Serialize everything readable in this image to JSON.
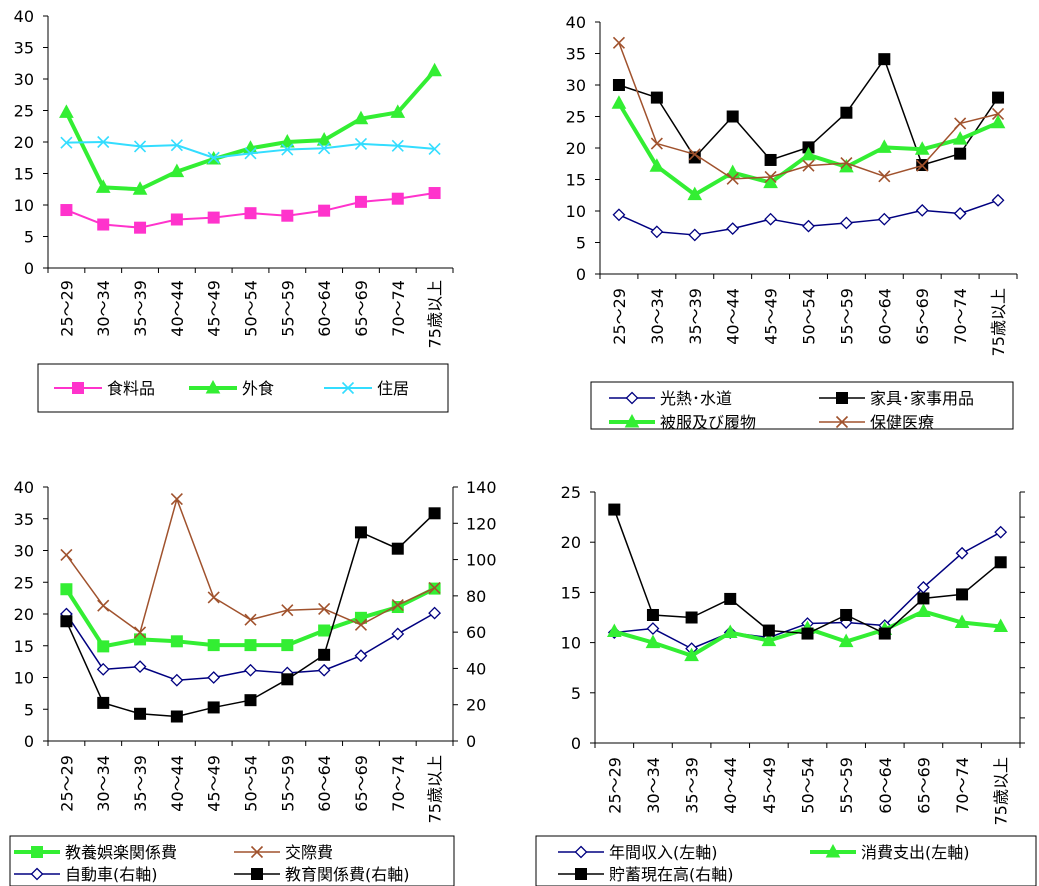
{
  "colors": {
    "magenta": "#ff33cc",
    "green": "#33ee33",
    "cyan": "#33ddff",
    "navy": "#000080",
    "black": "#000000",
    "brown": "#a0522d"
  },
  "chart_data": [
    {
      "type": "line",
      "categories": [
        "25～29",
        "30～34",
        "35～39",
        "40～44",
        "45～49",
        "50～54",
        "55～59",
        "60～64",
        "65～69",
        "70～74",
        "75歳以上"
      ],
      "ylim": [
        0,
        40
      ],
      "yticks": [
        0,
        5,
        10,
        15,
        20,
        25,
        30,
        35,
        40
      ],
      "legend": "bottom",
      "series": [
        {
          "name": "食料品",
          "color": "#ff33cc",
          "marker": "square",
          "width": 2,
          "values": [
            9.2,
            6.9,
            6.4,
            7.7,
            8.0,
            8.7,
            8.3,
            9.1,
            10.5,
            11.0,
            11.9
          ]
        },
        {
          "name": "外食",
          "color": "#33ee33",
          "marker": "triangle",
          "width": 4,
          "values": [
            24.7,
            12.8,
            12.5,
            15.3,
            17.3,
            19.0,
            20.0,
            20.3,
            23.7,
            24.7,
            31.3
          ]
        },
        {
          "name": "住居",
          "color": "#33ddff",
          "marker": "x",
          "width": 2,
          "values": [
            19.9,
            20.0,
            19.3,
            19.5,
            17.5,
            18.2,
            18.8,
            19.0,
            19.7,
            19.4,
            18.9
          ]
        }
      ]
    },
    {
      "type": "line",
      "categories": [
        "25～29",
        "30～34",
        "35～39",
        "40～44",
        "45～49",
        "50～54",
        "55～59",
        "60～64",
        "65～69",
        "70～74",
        "75歳以上"
      ],
      "ylim": [
        0,
        40
      ],
      "yticks": [
        0,
        5,
        10,
        15,
        20,
        25,
        30,
        35,
        40
      ],
      "legend": "bottom",
      "series": [
        {
          "name": "光熱･水道",
          "color": "#000080",
          "marker": "diamond",
          "width": 1.5,
          "values": [
            9.4,
            6.7,
            6.2,
            7.2,
            8.7,
            7.6,
            8.1,
            8.7,
            10.1,
            9.6,
            11.7
          ]
        },
        {
          "name": "家具･家事用品",
          "color": "#000000",
          "marker": "square",
          "width": 1.5,
          "values": [
            30.0,
            28.0,
            18.5,
            25.0,
            18.1,
            20.1,
            25.6,
            34.1,
            17.3,
            19.1,
            28.0
          ]
        },
        {
          "name": "被服及び履物",
          "color": "#33ee33",
          "marker": "triangle",
          "width": 4,
          "values": [
            27.1,
            17.1,
            12.6,
            16.1,
            14.5,
            18.9,
            17.0,
            20.1,
            19.8,
            21.4,
            24.0
          ]
        },
        {
          "name": "保健医療",
          "color": "#a0522d",
          "marker": "x",
          "width": 1.5,
          "values": [
            36.7,
            20.7,
            19.0,
            15.1,
            15.4,
            17.2,
            17.6,
            15.5,
            17.2,
            23.9,
            25.4
          ]
        }
      ]
    },
    {
      "type": "line",
      "categories": [
        "25～29",
        "30～34",
        "35～39",
        "40～44",
        "45～49",
        "50～54",
        "55～59",
        "60～64",
        "65～69",
        "70～74",
        "75歳以上"
      ],
      "ylim": [
        0,
        40
      ],
      "yticks": [
        0,
        5,
        10,
        15,
        20,
        25,
        30,
        35,
        40
      ],
      "y2lim": [
        0,
        140
      ],
      "y2ticks": [
        0,
        20,
        40,
        60,
        80,
        100,
        120,
        140
      ],
      "legend": "bottom",
      "series": [
        {
          "name": "教養娯楽関係費",
          "color": "#33ee33",
          "marker": "square",
          "width": 4,
          "axis": "left",
          "values": [
            23.9,
            14.9,
            16.0,
            15.7,
            15.1,
            15.1,
            15.1,
            17.4,
            19.4,
            21.1,
            24.0
          ]
        },
        {
          "name": "交際費",
          "color": "#a0522d",
          "marker": "x",
          "width": 1.5,
          "axis": "left",
          "values": [
            29.3,
            21.3,
            17.1,
            38.1,
            22.6,
            19.1,
            20.6,
            20.8,
            18.3,
            21.4,
            24.1
          ]
        },
        {
          "name": "自動車(右軸)",
          "color": "#000080",
          "marker": "diamond",
          "width": 1.5,
          "axis": "right",
          "values": [
            70.0,
            39.5,
            41.0,
            33.5,
            35.0,
            39.0,
            37.5,
            39.0,
            47.0,
            59.0,
            70.5
          ]
        },
        {
          "name": "教育関係費(右軸)",
          "color": "#000000",
          "marker": "square",
          "width": 1.5,
          "axis": "right",
          "values": [
            66.0,
            21.0,
            15.0,
            13.5,
            18.5,
            22.5,
            34.0,
            47.5,
            115.0,
            106.0,
            125.5
          ]
        }
      ]
    },
    {
      "type": "line",
      "categories": [
        "25～29",
        "30～34",
        "35～39",
        "40～44",
        "45～49",
        "50～54",
        "55～59",
        "60～64",
        "65～69",
        "70～74",
        "75歳以上"
      ],
      "ylim": [
        0,
        25
      ],
      "yticks": [
        0,
        5,
        10,
        15,
        20,
        25
      ],
      "y2lim": [
        0,
        50
      ],
      "legend": "bottom",
      "series": [
        {
          "name": "年間収入(左軸)",
          "color": "#000080",
          "marker": "diamond",
          "width": 1.5,
          "axis": "left",
          "values": [
            11.0,
            11.4,
            9.4,
            11.0,
            10.5,
            11.9,
            12.0,
            11.7,
            15.5,
            18.9,
            21.0
          ]
        },
        {
          "name": "消費支出(左軸)",
          "color": "#33ee33",
          "marker": "triangle",
          "width": 4,
          "axis": "left",
          "values": [
            11.1,
            10.0,
            8.7,
            11.0,
            10.2,
            11.4,
            10.1,
            11.3,
            13.1,
            12.0,
            11.6
          ]
        },
        {
          "name": "貯蓄現在高(右軸)",
          "color": "#000000",
          "marker": "square",
          "width": 1.5,
          "axis": "right",
          "values": [
            46.5,
            25.5,
            25.0,
            28.7,
            22.4,
            21.8,
            25.5,
            21.8,
            28.8,
            29.6,
            36.0
          ]
        }
      ]
    }
  ]
}
